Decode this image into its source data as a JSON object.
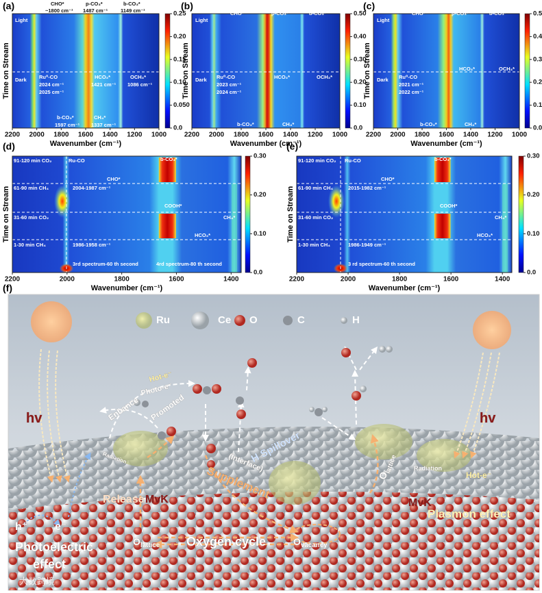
{
  "panels": [
    {
      "label": "(a)",
      "y_axis": "Time on Stream",
      "x_axis": "Wavenumber (cm⁻¹)",
      "x_ticks": [
        "2200",
        "2000",
        "1800",
        "1600",
        "1400",
        "1200",
        "1000"
      ],
      "colorbar_ticks": [
        "0.25",
        "0.20",
        "0.15",
        "0.10",
        "0.050",
        "0.0"
      ],
      "annotations": [
        "CHO*",
        "~1800 cm⁻¹",
        "p-CO₃*",
        "1487 cm⁻¹",
        "b-CO₃*",
        "1149 cm⁻¹",
        "Light",
        "Dark",
        "Ru⁰-CO",
        "2024 cm⁻¹",
        "2025 cm⁻¹",
        "HCO₃*",
        "1421 cm⁻¹",
        "OCH₃*",
        "1086 cm⁻¹",
        "b-CO₃*",
        "1597 cm⁻¹",
        "CH₄*",
        "1337 cm⁻¹"
      ]
    },
    {
      "label": "(b)",
      "y_axis": "Time on Stream",
      "x_axis": "Wavenumber (cm⁻¹)",
      "x_ticks": [
        "2200",
        "2000",
        "1800",
        "1600",
        "1400",
        "1200",
        "1000"
      ],
      "colorbar_ticks": [
        "0.50",
        "0.40",
        "0.30",
        "0.20",
        "0.10",
        "0.0"
      ],
      "annotations": [
        "CHO*",
        "p-CO₃*",
        "b-CO₃*",
        "Light",
        "Dark",
        "Ru⁰-CO",
        "2023 cm⁻¹",
        "2024 cm⁻¹",
        "HCO₃*",
        "OCH₃*",
        "b-CO₃*",
        "CH₄*"
      ]
    },
    {
      "label": "(c)",
      "y_axis": "Time on Stream",
      "x_axis": "Wavenumber (cm⁻¹)",
      "x_ticks": [
        "2200",
        "2000",
        "1800",
        "1600",
        "1400",
        "1200",
        "1000"
      ],
      "colorbar_ticks": [
        "0.50",
        "0.40",
        "0.30",
        "0.20",
        "0.10",
        "0.0"
      ],
      "annotations": [
        "CHO*",
        "p-CO₃*",
        "b-CO₃*",
        "Light",
        "Dark",
        "Ru⁰-CO",
        "2021 cm⁻¹",
        "2022 cm⁻¹",
        "HCO₃*",
        "OCH₃*",
        "b-CO₃*",
        "CH₄*"
      ]
    },
    {
      "label": "(d)",
      "y_axis": "Time on Stream",
      "x_axis": "Wavenumber (cm⁻¹)",
      "x_ticks": [
        "2200",
        "2000",
        "1800",
        "1600",
        "1400"
      ],
      "colorbar_ticks": [
        "0.30",
        "0.20",
        "0.10",
        "0.0"
      ],
      "annotations": [
        "91-120 min CO₂",
        "Ru-CO",
        "b-CO₃*",
        "CHO*",
        "61-90 min CH₄",
        "2004-1987 cm⁻¹",
        "COOH*",
        "31-60 min CO₂",
        "CH₄*",
        "HCO₃*",
        "1-30 min CH₄",
        "1986-1958 cm⁻¹",
        "3rd spectrum-60 th second",
        "4rd spectrum-80 th second"
      ]
    },
    {
      "label": "(e)",
      "y_axis": "Time on Stream",
      "x_axis": "Wavenumber (cm⁻¹)",
      "x_ticks": [
        "2200",
        "2000",
        "1800",
        "1600",
        "1400"
      ],
      "colorbar_ticks": [
        "0.30",
        "0.20",
        "0.10",
        "0.0"
      ],
      "annotations": [
        "91-120 min CO₂",
        "Ru-CO",
        "b-CO₃*",
        "CHO*",
        "61-90 min CH₄",
        "2015-1982 cm⁻¹",
        "COOH*",
        "31-60 min CO₂",
        "CH₄*",
        "HCO₃*",
        "1-30 min CH₄",
        "1986-1949 cm⁻¹",
        "3 rd spectrum-60 th second"
      ]
    }
  ],
  "figure_f": {
    "label": "(f)",
    "legend": [
      "Ru",
      "Ce",
      "O",
      "C",
      "H"
    ],
    "labels": [
      {
        "main": "hv"
      },
      {
        "main": "Hot-e⁻"
      },
      {
        "main": "Photo-e⁻"
      },
      {
        "main": "Enhance"
      },
      {
        "main": "Promoted"
      },
      {
        "main": "Radiation"
      },
      {
        "main": "Release"
      },
      {
        "main": "MvK"
      },
      {
        "main": "h⁺"
      },
      {
        "main": "e⁻"
      },
      {
        "main": "Photoelectric"
      },
      {
        "main": "effect"
      },
      {
        "main": "O",
        "sub": "lattice"
      },
      {
        "main": "Oxygen cycle"
      },
      {
        "main": "O",
        "sub": "vacancy"
      },
      {
        "main": "Supplement"
      },
      {
        "main": "(Interface)"
      },
      {
        "main": "H Spillover"
      },
      {
        "main": "O",
        "sub": "lattice"
      },
      {
        "main": "MvK"
      },
      {
        "main": "Radiation"
      },
      {
        "main": "Hot-e⁻"
      },
      {
        "main": "Plasmon effect"
      },
      {
        "main": "hv"
      }
    ],
    "watermark": "大数跨境"
  }
}
